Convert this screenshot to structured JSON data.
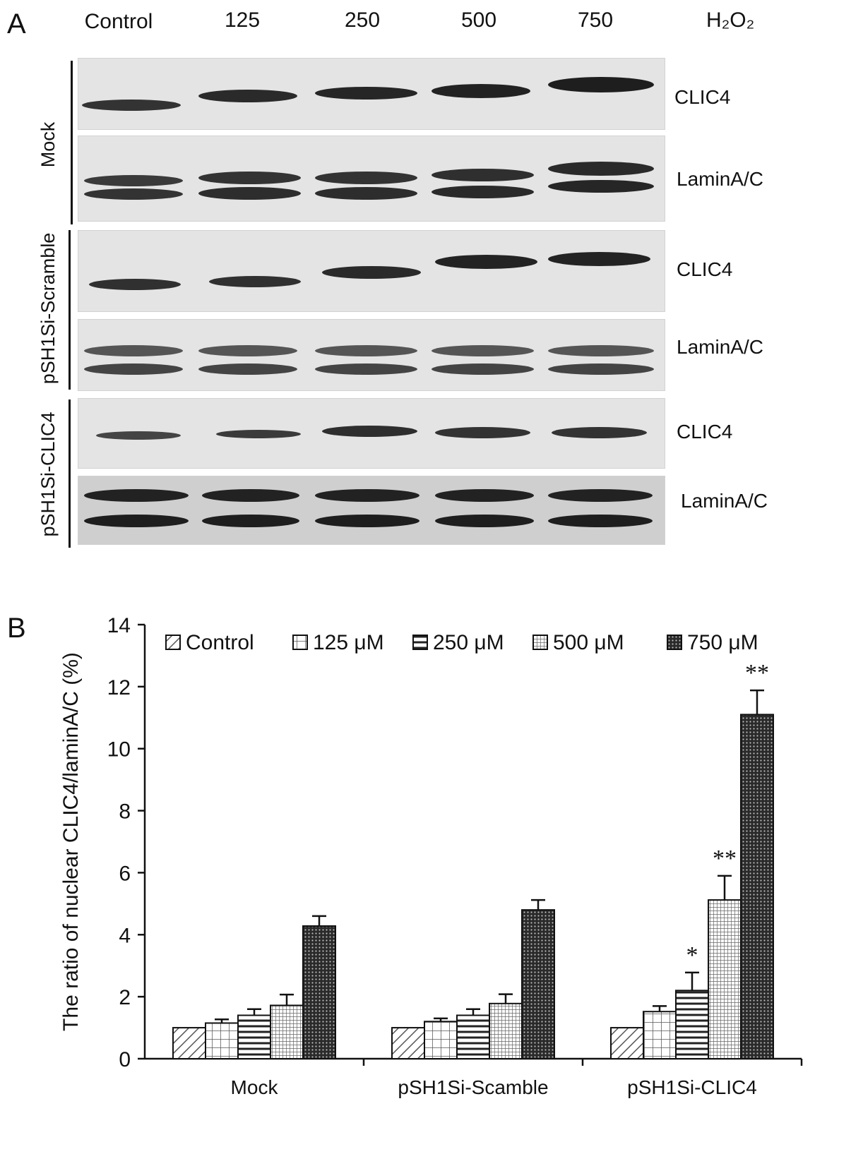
{
  "panel_a": {
    "letter": "A",
    "lanes": [
      "Control",
      "125",
      "250",
      "500",
      "750"
    ],
    "treatment_label": "H₂O₂",
    "groups": [
      {
        "name": "Mock",
        "blots": [
          "CLIC4",
          "LaminA/C"
        ]
      },
      {
        "name": "pSH1Si-Scramble",
        "blots": [
          "CLIC4",
          "LaminA/C"
        ]
      },
      {
        "name": "pSH1Si-CLIC4",
        "blots": [
          "CLIC4",
          "LaminA/C"
        ]
      }
    ]
  },
  "panel_b": {
    "letter": "B"
  },
  "chart_data": {
    "type": "bar",
    "title": "",
    "ylabel": "The ratio of nuclear CLIC4/laminA/C (%)",
    "xlabel": "",
    "ylim": [
      0,
      14
    ],
    "yticks": [
      0,
      2,
      4,
      6,
      8,
      10,
      12,
      14
    ],
    "categories": [
      "Mock",
      "pSH1Si-Scamble",
      "pSH1Si-CLIC4"
    ],
    "legend_position": "top",
    "series": [
      {
        "name": "Control",
        "pattern": "diagonal",
        "values": [
          1.0,
          1.0,
          1.0
        ],
        "errors": [
          0,
          0,
          0
        ],
        "sig": [
          "",
          "",
          ""
        ]
      },
      {
        "name": "125 μM",
        "pattern": "grid",
        "values": [
          1.15,
          1.2,
          1.52
        ],
        "errors": [
          0.12,
          0.1,
          0.18
        ],
        "sig": [
          "",
          "",
          ""
        ]
      },
      {
        "name": "250 μM",
        "pattern": "horizontal",
        "values": [
          1.4,
          1.4,
          2.2
        ],
        "errors": [
          0.2,
          0.2,
          0.58
        ],
        "sig": [
          "",
          "",
          "*"
        ]
      },
      {
        "name": "500 μM",
        "pattern": "finegrid",
        "values": [
          1.72,
          1.78,
          5.12
        ],
        "errors": [
          0.35,
          0.3,
          0.78
        ],
        "sig": [
          "",
          "",
          "**"
        ]
      },
      {
        "name": "750 μM",
        "pattern": "crosshatch",
        "values": [
          4.28,
          4.8,
          11.1
        ],
        "errors": [
          0.32,
          0.32,
          0.78
        ],
        "sig": [
          "",
          "",
          "**"
        ]
      }
    ]
  }
}
